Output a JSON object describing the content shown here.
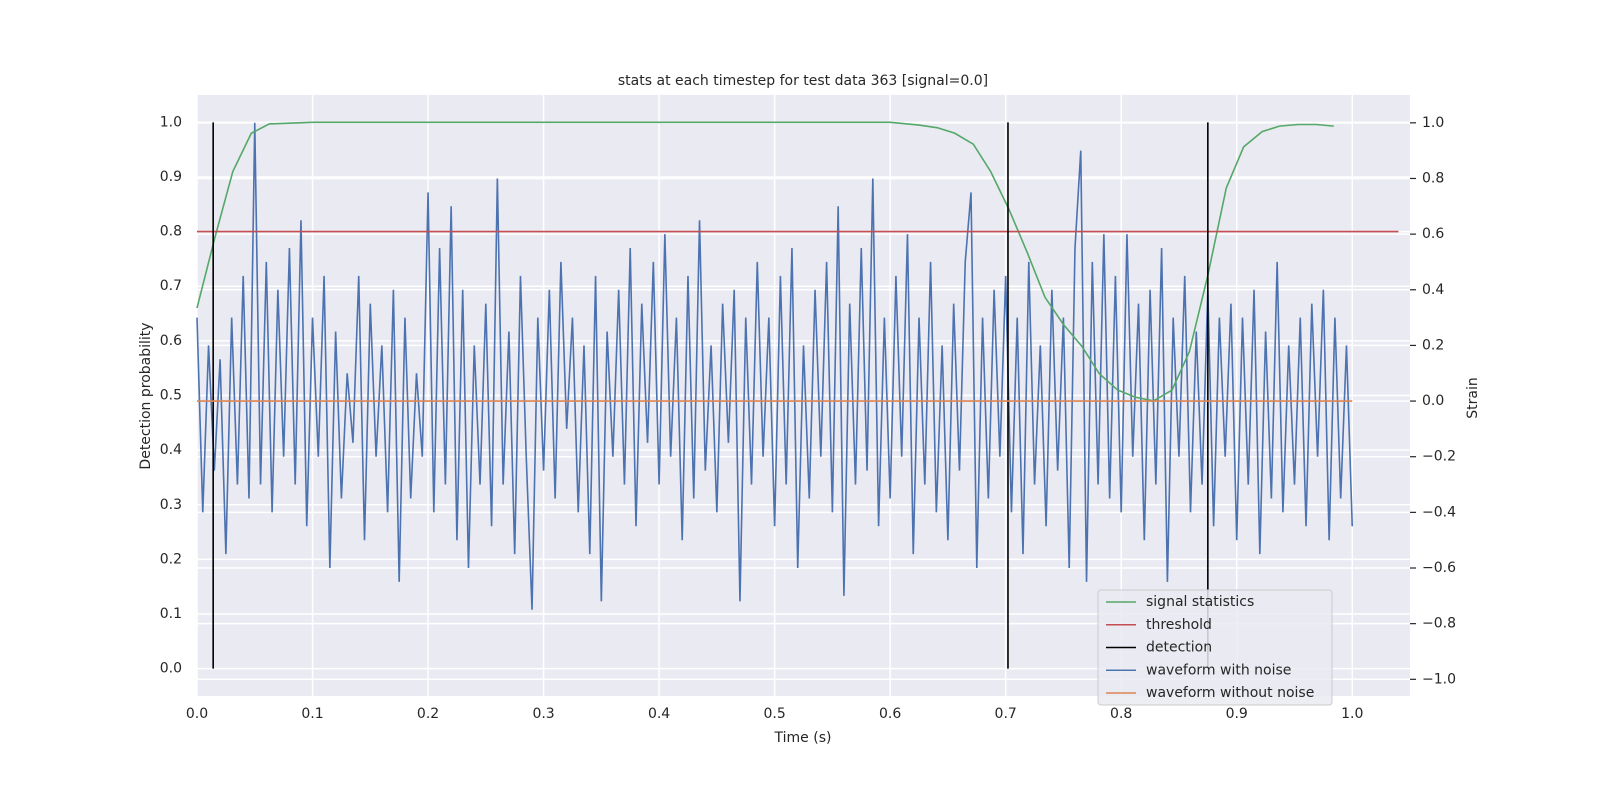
{
  "chart_data": {
    "type": "line",
    "title": "stats at each timestep for test data 363 [signal=0.0]",
    "xlabel": "Time (s)",
    "ylabel": "Detection probability",
    "y2label": "Strain",
    "xlim": [
      0,
      1.05
    ],
    "ylim": [
      -0.05,
      1.05
    ],
    "y2lim": [
      -1.06,
      1.1
    ],
    "xticks": [
      {
        "value": 0,
        "label": "0.0"
      },
      0.1,
      0.2,
      0.3,
      0.4,
      0.5,
      0.6,
      0.7,
      0.8,
      0.9,
      {
        "value": 1,
        "label": "1.0"
      }
    ],
    "yticks": [
      {
        "value": 0,
        "label": "0.0"
      },
      0.1,
      0.2,
      0.3,
      0.4,
      0.5,
      0.6,
      0.7,
      0.8,
      0.9,
      {
        "value": 1,
        "label": "1.0"
      }
    ],
    "y2ticks": [
      {
        "value": -1,
        "label": "−1.0"
      },
      {
        "value": -0.8,
        "label": "−0.8"
      },
      {
        "value": -0.6,
        "label": "−0.6"
      },
      {
        "value": -0.4,
        "label": "−0.4"
      },
      {
        "value": -0.2,
        "label": "−0.2"
      },
      {
        "value": 0,
        "label": "0.0"
      },
      0.2,
      0.4,
      0.6,
      0.8,
      {
        "value": 1,
        "label": "1.0"
      }
    ],
    "grid": true,
    "legend_loc": "lower right",
    "series": [
      {
        "name": "signal statistics",
        "color": "#55a868",
        "axis": "y",
        "x": [
          0,
          0.0156,
          0.031,
          0.047,
          0.0625,
          0.1,
          0.6,
          0.625,
          0.641,
          0.656,
          0.672,
          0.687,
          0.703,
          0.719,
          0.734,
          0.75,
          0.766,
          0.781,
          0.797,
          0.812,
          0.828,
          0.844,
          0.859,
          0.875,
          0.891,
          0.906,
          0.922,
          0.937,
          0.953,
          0.969,
          0.984
        ],
        "values": [
          0.66,
          0.79,
          0.91,
          0.98,
          0.997,
          1.0,
          1.0,
          0.995,
          0.99,
          0.98,
          0.96,
          0.91,
          0.84,
          0.76,
          0.68,
          0.63,
          0.59,
          0.54,
          0.51,
          0.497,
          0.49,
          0.51,
          0.58,
          0.72,
          0.88,
          0.955,
          0.983,
          0.993,
          0.996,
          0.996,
          0.993
        ]
      },
      {
        "name": "threshold",
        "color": "#c44e52",
        "axis": "y",
        "x": [
          0,
          1.04
        ],
        "values": [
          0.8,
          0.8
        ]
      },
      {
        "name": "detection",
        "color": "#000000",
        "axis": "y",
        "style": "vlines",
        "x": [
          0.014,
          0.702,
          0.875
        ],
        "ymin": 0,
        "ymax": 1
      },
      {
        "name": "waveform with noise",
        "color": "#4c72b0",
        "axis": "y2",
        "x": [
          0,
          0.005,
          0.01,
          0.015,
          0.02,
          0.025,
          0.03,
          0.035,
          0.04,
          0.045,
          0.05,
          0.055,
          0.06,
          0.065,
          0.07,
          0.075,
          0.08,
          0.085,
          0.09,
          0.095,
          0.1,
          0.105,
          0.11,
          0.115,
          0.12,
          0.125,
          0.13,
          0.135,
          0.14,
          0.145,
          0.15,
          0.155,
          0.16,
          0.165,
          0.17,
          0.175,
          0.18,
          0.185,
          0.19,
          0.195,
          0.2,
          0.205,
          0.21,
          0.215,
          0.22,
          0.225,
          0.23,
          0.235,
          0.24,
          0.245,
          0.25,
          0.255,
          0.26,
          0.265,
          0.27,
          0.275,
          0.28,
          0.285,
          0.29,
          0.295,
          0.3,
          0.305,
          0.31,
          0.315,
          0.32,
          0.325,
          0.33,
          0.335,
          0.34,
          0.345,
          0.35,
          0.355,
          0.36,
          0.365,
          0.37,
          0.375,
          0.38,
          0.385,
          0.39,
          0.395,
          0.4,
          0.405,
          0.41,
          0.415,
          0.42,
          0.425,
          0.43,
          0.435,
          0.44,
          0.445,
          0.45,
          0.455,
          0.46,
          0.465,
          0.47,
          0.475,
          0.48,
          0.485,
          0.49,
          0.495,
          0.5,
          0.505,
          0.51,
          0.515,
          0.52,
          0.525,
          0.53,
          0.535,
          0.54,
          0.545,
          0.55,
          0.555,
          0.56,
          0.565,
          0.57,
          0.575,
          0.58,
          0.585,
          0.59,
          0.595,
          0.6,
          0.605,
          0.61,
          0.615,
          0.62,
          0.625,
          0.63,
          0.635,
          0.64,
          0.645,
          0.65,
          0.655,
          0.66,
          0.665,
          0.67,
          0.675,
          0.68,
          0.685,
          0.69,
          0.695,
          0.7,
          0.705,
          0.71,
          0.715,
          0.72,
          0.725,
          0.73,
          0.735,
          0.74,
          0.745,
          0.75,
          0.755,
          0.76,
          0.765,
          0.77,
          0.775,
          0.78,
          0.785,
          0.79,
          0.795,
          0.8,
          0.805,
          0.81,
          0.815,
          0.82,
          0.825,
          0.83,
          0.835,
          0.84,
          0.845,
          0.85,
          0.855,
          0.86,
          0.865,
          0.87,
          0.875,
          0.88,
          0.885,
          0.89,
          0.895,
          0.9,
          0.905,
          0.91,
          0.915,
          0.92,
          0.925,
          0.93,
          0.935,
          0.94,
          0.945,
          0.95,
          0.955,
          0.96,
          0.965,
          0.97,
          0.975,
          0.98,
          0.985,
          0.99,
          0.995,
          1.0
        ],
        "values": [
          0.3,
          -0.4,
          0.2,
          -0.25,
          0.15,
          -0.55,
          0.3,
          -0.3,
          0.45,
          -0.35,
          1.0,
          -0.3,
          0.5,
          -0.4,
          0.4,
          -0.2,
          0.55,
          -0.3,
          0.65,
          -0.45,
          0.3,
          -0.2,
          0.45,
          -0.6,
          0.25,
          -0.35,
          0.1,
          -0.15,
          0.45,
          -0.5,
          0.35,
          -0.2,
          0.2,
          -0.4,
          0.4,
          -0.65,
          0.3,
          -0.35,
          0.1,
          -0.2,
          0.75,
          -0.4,
          0.55,
          -0.3,
          0.7,
          -0.5,
          0.4,
          -0.6,
          0.2,
          -0.3,
          0.35,
          -0.45,
          0.8,
          -0.3,
          0.25,
          -0.55,
          0.45,
          -0.2,
          -0.75,
          0.3,
          -0.25,
          0.4,
          -0.35,
          0.5,
          -0.1,
          0.3,
          -0.4,
          0.2,
          -0.55,
          0.45,
          -0.72,
          0.25,
          -0.2,
          0.4,
          -0.3,
          0.55,
          -0.45,
          0.35,
          -0.15,
          0.5,
          -0.3,
          0.6,
          -0.2,
          0.3,
          -0.5,
          0.45,
          -0.35,
          0.65,
          -0.25,
          0.2,
          -0.4,
          0.35,
          -0.15,
          0.4,
          -0.72,
          0.3,
          -0.3,
          0.5,
          -0.2,
          0.3,
          -0.45,
          0.45,
          -0.3,
          0.55,
          -0.6,
          0.2,
          -0.35,
          0.4,
          -0.2,
          0.5,
          -0.4,
          0.7,
          -0.7,
          0.35,
          -0.3,
          0.55,
          -0.25,
          0.8,
          -0.45,
          0.3,
          -0.35,
          0.45,
          -0.2,
          0.6,
          -0.55,
          0.3,
          -0.3,
          0.5,
          -0.4,
          0.2,
          -0.5,
          0.35,
          -0.25,
          0.5,
          0.75,
          -0.6,
          0.3,
          -0.35,
          0.4,
          -0.2,
          0.45,
          -0.4,
          0.3,
          -0.55,
          0.5,
          -0.3,
          0.2,
          -0.45,
          0.4,
          -0.25,
          0.3,
          -0.6,
          0.55,
          0.9,
          -0.65,
          0.5,
          -0.3,
          0.6,
          -0.35,
          0.45,
          -0.4,
          0.6,
          -0.2,
          0.35,
          -0.5,
          0.4,
          -0.3,
          0.55,
          -0.65,
          0.3,
          -0.2,
          0.45,
          -0.4,
          0.25,
          -0.3,
          0.4,
          -0.45,
          0.3,
          -0.2,
          0.35,
          -0.5,
          0.3,
          -0.3,
          0.4,
          -0.55,
          0.25,
          -0.35,
          0.5,
          -0.4,
          0.2,
          -0.3,
          0.3,
          -0.45,
          0.35,
          -0.2,
          0.4,
          -0.5,
          0.3,
          -0.35,
          0.2,
          -0.45
        ]
      },
      {
        "name": "waveform without noise",
        "color": "#dd8452",
        "axis": "y2",
        "x": [
          0,
          1
        ],
        "values": [
          0,
          0
        ]
      }
    ]
  }
}
